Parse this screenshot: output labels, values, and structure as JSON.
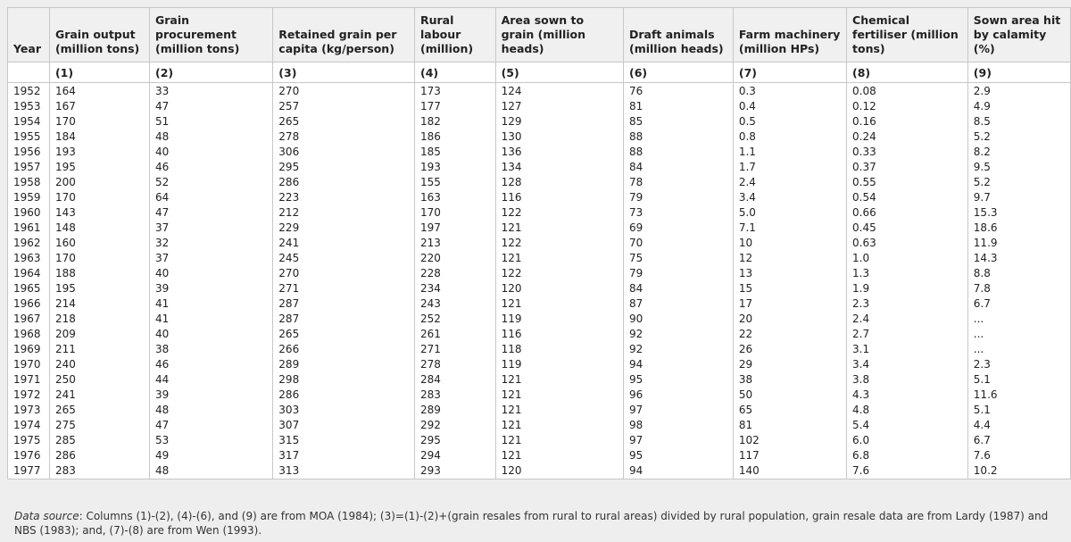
{
  "table": {
    "headers": [
      {
        "label": "Year",
        "num": ""
      },
      {
        "label": "Grain output (million tons)",
        "num": "(1)"
      },
      {
        "label": "Grain procurement (million tons)",
        "num": "(2)"
      },
      {
        "label": "Retained grain per capita (kg/person)",
        "num": "(3)"
      },
      {
        "label": "Rural labour (million)",
        "num": "(4)"
      },
      {
        "label": "Area sown to grain (million heads)",
        "num": "(5)"
      },
      {
        "label": "Draft animals (million heads)",
        "num": "(6)"
      },
      {
        "label": "Farm machinery (million HPs)",
        "num": "(7)"
      },
      {
        "label": "Chemical fertiliser (million tons)",
        "num": "(8)"
      },
      {
        "label": "Sown area hit by calamity (%)",
        "num": "(9)"
      }
    ],
    "rows": [
      [
        "1952",
        "164",
        "33",
        "270",
        "173",
        "124",
        "76",
        "0.3",
        "0.08",
        "2.9"
      ],
      [
        "1953",
        "167",
        "47",
        "257",
        "177",
        "127",
        "81",
        "0.4",
        "0.12",
        "4.9"
      ],
      [
        "1954",
        "170",
        "51",
        "265",
        "182",
        "129",
        "85",
        "0.5",
        "0.16",
        "8.5"
      ],
      [
        "1955",
        "184",
        "48",
        "278",
        "186",
        "130",
        "88",
        "0.8",
        "0.24",
        "5.2"
      ],
      [
        "1956",
        "193",
        "40",
        "306",
        "185",
        "136",
        "88",
        "1.1",
        "0.33",
        "8.2"
      ],
      [
        "1957",
        "195",
        "46",
        "295",
        "193",
        "134",
        "84",
        "1.7",
        "0.37",
        "9.5"
      ],
      [
        "1958",
        "200",
        "52",
        "286",
        "155",
        "128",
        "78",
        "2.4",
        "0.55",
        "5.2"
      ],
      [
        "1959",
        "170",
        "64",
        "223",
        "163",
        "116",
        "79",
        "3.4",
        "0.54",
        "9.7"
      ],
      [
        "1960",
        "143",
        "47",
        "212",
        "170",
        "122",
        "73",
        "5.0",
        "0.66",
        "15.3"
      ],
      [
        "1961",
        "148",
        "37",
        "229",
        "197",
        "121",
        "69",
        "7.1",
        "0.45",
        "18.6"
      ],
      [
        "1962",
        "160",
        "32",
        "241",
        "213",
        "122",
        "70",
        "10",
        "0.63",
        "11.9"
      ],
      [
        "1963",
        "170",
        "37",
        "245",
        "220",
        "121",
        "75",
        "12",
        "1.0",
        "14.3"
      ],
      [
        "1964",
        "188",
        "40",
        "270",
        "228",
        "122",
        "79",
        "13",
        "1.3",
        "8.8"
      ],
      [
        "1965",
        "195",
        "39",
        "271",
        "234",
        "120",
        "84",
        "15",
        "1.9",
        "7.8"
      ],
      [
        "1966",
        "214",
        "41",
        "287",
        "243",
        "121",
        "87",
        "17",
        "2.3",
        "6.7"
      ],
      [
        "1967",
        "218",
        "41",
        "287",
        "252",
        "119",
        "90",
        "20",
        "2.4",
        "..."
      ],
      [
        "1968",
        "209",
        "40",
        "265",
        "261",
        "116",
        "92",
        "22",
        "2.7",
        "..."
      ],
      [
        "1969",
        "211",
        "38",
        "266",
        "271",
        "118",
        "92",
        "26",
        "3.1",
        "..."
      ],
      [
        "1970",
        "240",
        "46",
        "289",
        "278",
        "119",
        "94",
        "29",
        "3.4",
        "2.3"
      ],
      [
        "1971",
        "250",
        "44",
        "298",
        "284",
        "121",
        "95",
        "38",
        "3.8",
        "5.1"
      ],
      [
        "1972",
        "241",
        "39",
        "286",
        "283",
        "121",
        "96",
        "50",
        "4.3",
        "11.6"
      ],
      [
        "1973",
        "265",
        "48",
        "303",
        "289",
        "121",
        "97",
        "65",
        "4.8",
        "5.1"
      ],
      [
        "1974",
        "275",
        "47",
        "307",
        "292",
        "121",
        "98",
        "81",
        "5.4",
        "4.4"
      ],
      [
        "1975",
        "285",
        "53",
        "315",
        "295",
        "121",
        "97",
        "102",
        "6.0",
        "6.7"
      ],
      [
        "1976",
        "286",
        "49",
        "317",
        "294",
        "121",
        "95",
        "117",
        "6.8",
        "7.6"
      ],
      [
        "1977",
        "283",
        "48",
        "313",
        "293",
        "120",
        "94",
        "140",
        "7.6",
        "10.2"
      ]
    ]
  },
  "note": {
    "label": "Data source",
    "text": ": Columns (1)-(2), (4)-(6), and (9) are from MOA (1984); (3)=(1)-(2)+(grain resales from rural to rural areas) divided by rural population, grain resale data are from Lardy (1987) and NBS (1983); and, (7)-(8) are from Wen (1993)."
  }
}
